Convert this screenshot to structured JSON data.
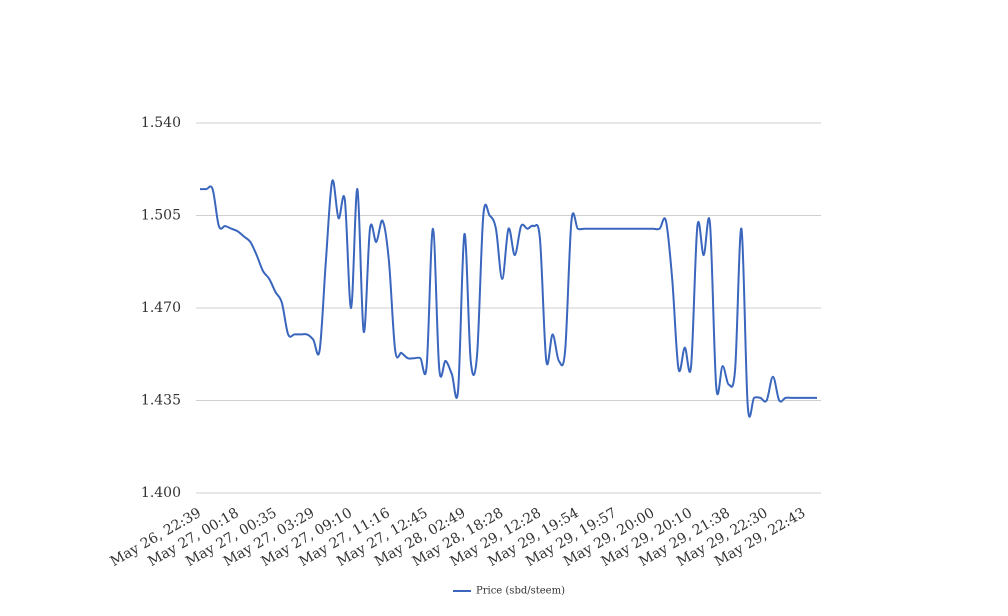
{
  "chart_data": {
    "type": "line",
    "categories": [
      "May 26, 22:39",
      null,
      null,
      null,
      null,
      null,
      "May 27, 00:18",
      null,
      null,
      null,
      null,
      null,
      "May 27, 00:35",
      null,
      null,
      null,
      null,
      null,
      "May 27, 03:29",
      null,
      null,
      null,
      null,
      null,
      "May 27, 09:10",
      null,
      null,
      null,
      null,
      null,
      "May 27, 11:16",
      null,
      null,
      null,
      null,
      null,
      "May 27, 12:45",
      null,
      null,
      null,
      null,
      null,
      "May 28, 02:49",
      null,
      null,
      null,
      null,
      null,
      "May 28, 18:28",
      null,
      null,
      null,
      null,
      null,
      "May 29, 12:28",
      null,
      null,
      null,
      null,
      null,
      "May 29, 19:54",
      null,
      null,
      null,
      null,
      null,
      "May 29, 19:57",
      null,
      null,
      null,
      null,
      null,
      "May 29, 20:00",
      null,
      null,
      null,
      null,
      null,
      "May 29, 20:10",
      null,
      null,
      null,
      null,
      null,
      "May 29, 21:38",
      null,
      null,
      null,
      null,
      null,
      "May 29, 22:30",
      null,
      null,
      null,
      null,
      null,
      "May 29, 22:43",
      null,
      null
    ],
    "series": [
      {
        "name": "Price (sbd/steem)",
        "color": "#3a66bd",
        "values": [
          1.515,
          1.515,
          1.515,
          1.501,
          1.501,
          1.5,
          1.499,
          1.497,
          1.495,
          1.49,
          1.484,
          1.481,
          1.476,
          1.472,
          1.46,
          1.46,
          1.46,
          1.46,
          1.458,
          1.454,
          1.488,
          1.518,
          1.504,
          1.511,
          1.47,
          1.515,
          1.461,
          1.5,
          1.495,
          1.503,
          1.488,
          1.454,
          1.453,
          1.451,
          1.451,
          1.451,
          1.448,
          1.5,
          1.447,
          1.45,
          1.445,
          1.439,
          1.498,
          1.45,
          1.452,
          1.505,
          1.505,
          1.5,
          1.481,
          1.5,
          1.49,
          1.501,
          1.5,
          1.501,
          1.496,
          1.45,
          1.46,
          1.45,
          1.454,
          1.503,
          1.5,
          1.5,
          1.5,
          1.5,
          1.5,
          1.5,
          1.5,
          1.5,
          1.5,
          1.5,
          1.5,
          1.5,
          1.5,
          1.5,
          1.503,
          1.481,
          1.447,
          1.455,
          1.448,
          1.501,
          1.49,
          1.502,
          1.44,
          1.448,
          1.441,
          1.447,
          1.5,
          1.433,
          1.436,
          1.436,
          1.435,
          1.444,
          1.435,
          1.436,
          1.436,
          1.436,
          1.436,
          1.436,
          1.436
        ]
      }
    ],
    "ylim": [
      1.4,
      1.54
    ],
    "yticks": [
      {
        "value": 1.4,
        "label": "1.400"
      },
      1.435,
      {
        "value": 1.47,
        "label": "1.470"
      },
      1.505,
      {
        "value": 1.54,
        "label": "1.540"
      }
    ],
    "grid": true,
    "legend": "bottom"
  }
}
